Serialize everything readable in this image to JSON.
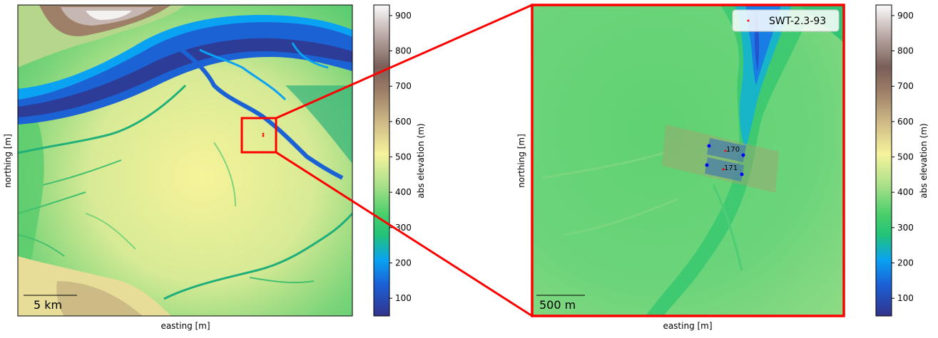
{
  "left_map": {
    "xlabel": "easting [m]",
    "ylabel": "northing [m]",
    "scalebar_label": "5 km"
  },
  "right_map": {
    "xlabel": "easting [m]",
    "ylabel": "northing [m]",
    "scalebar_label": "500 m",
    "legend_label": "SWT-2.3-93",
    "turbines": [
      {
        "label": "170"
      },
      {
        "label": "171"
      }
    ]
  },
  "colorbar": {
    "label": "abs elevation (m)",
    "ticks": [
      "900",
      "800",
      "700",
      "600",
      "500",
      "400",
      "300",
      "200",
      "100"
    ],
    "range": [
      50,
      930
    ]
  },
  "colors": {
    "zoom_box": "#ff0000",
    "turbine_marker": "#ff0000",
    "boundary_point": "#0000ff"
  }
}
